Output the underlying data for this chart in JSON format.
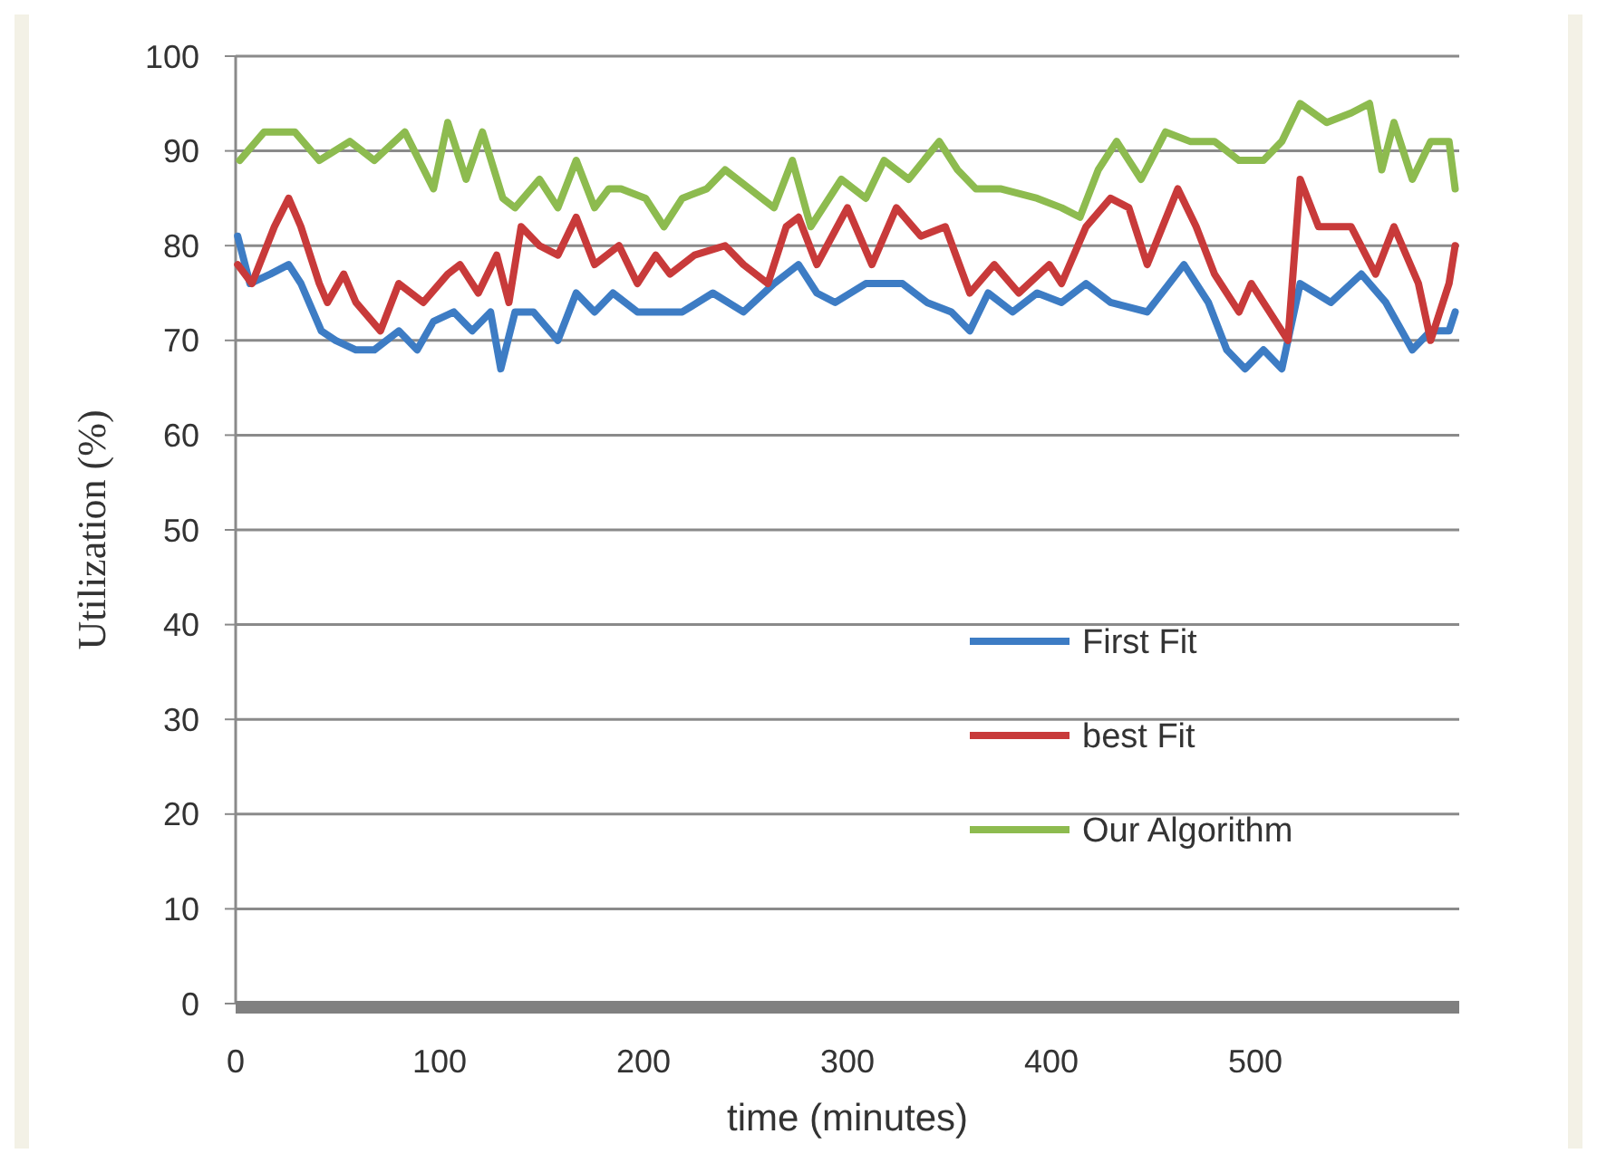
{
  "chart_data": {
    "type": "line",
    "xlabel": "time (minutes)",
    "ylabel": "Utilization (%)",
    "xlim": [
      0,
      600
    ],
    "xticks": [
      0,
      100,
      200,
      300,
      400,
      500
    ],
    "ylim": [
      0,
      100
    ],
    "yticks": [
      0,
      10,
      20,
      30,
      40,
      50,
      60,
      70,
      80,
      90,
      100
    ],
    "grid": "y",
    "legend": "bottom right",
    "marker": "none",
    "line_style": "solid",
    "series": [
      {
        "name": "First Fit",
        "color": "#3d7cc4",
        "x": [
          1,
          7,
          17,
          26,
          32,
          42,
          49,
          59,
          68,
          80,
          89,
          97,
          107,
          116,
          125,
          130,
          137,
          146,
          158,
          167,
          176,
          185,
          197,
          206,
          219,
          234,
          249,
          264,
          276,
          285,
          294,
          309,
          327,
          339,
          351,
          360,
          369,
          381,
          393,
          405,
          417,
          429,
          447,
          465,
          477,
          486,
          495,
          504,
          513,
          522,
          537,
          552,
          564,
          577,
          586,
          595,
          598
        ],
        "values": [
          81,
          76,
          77,
          78,
          76,
          71,
          70,
          69,
          69,
          71,
          69,
          72,
          73,
          71,
          73,
          67,
          73,
          73,
          70,
          75,
          73,
          75,
          73,
          73,
          73,
          75,
          73,
          76,
          78,
          75,
          74,
          76,
          76,
          74,
          73,
          71,
          75,
          73,
          75,
          74,
          76,
          74,
          73,
          78,
          74,
          69,
          67,
          69,
          67,
          76,
          74,
          77,
          74,
          69,
          71,
          71,
          73
        ]
      },
      {
        "name": "best Fit",
        "color": "#c83a3a",
        "x": [
          1,
          8,
          19,
          26,
          32,
          41,
          45,
          53,
          59,
          71,
          80,
          92,
          104,
          110,
          119,
          128,
          134,
          140,
          149,
          158,
          167,
          176,
          188,
          197,
          206,
          213,
          225,
          240,
          249,
          261,
          270,
          276,
          285,
          300,
          312,
          324,
          336,
          348,
          360,
          372,
          384,
          399,
          405,
          417,
          429,
          438,
          447,
          462,
          471,
          480,
          492,
          498,
          507,
          516,
          522,
          531,
          547,
          559,
          568,
          580,
          586,
          595,
          598
        ],
        "values": [
          78,
          76,
          82,
          85,
          82,
          76,
          74,
          77,
          74,
          71,
          76,
          74,
          77,
          78,
          75,
          79,
          74,
          82,
          80,
          79,
          83,
          78,
          80,
          76,
          79,
          77,
          79,
          80,
          78,
          76,
          82,
          83,
          78,
          84,
          78,
          84,
          81,
          82,
          75,
          78,
          75,
          78,
          76,
          82,
          85,
          84,
          78,
          86,
          82,
          77,
          73,
          76,
          73,
          70,
          87,
          82,
          82,
          77,
          82,
          76,
          70,
          76,
          80
        ]
      },
      {
        "name": "Our Algorithm",
        "color": "#8dbb4f",
        "x": [
          2,
          14,
          29,
          41,
          56,
          68,
          83,
          97,
          104,
          113,
          121,
          131,
          137,
          149,
          158,
          167,
          176,
          183,
          189,
          201,
          210,
          219,
          231,
          240,
          252,
          264,
          273,
          282,
          297,
          309,
          318,
          330,
          345,
          354,
          363,
          375,
          393,
          405,
          414,
          423,
          432,
          444,
          456,
          468,
          480,
          492,
          504,
          513,
          522,
          535,
          547,
          556,
          562,
          568,
          577,
          586,
          595,
          598
        ],
        "values": [
          89,
          92,
          92,
          89,
          91,
          89,
          92,
          86,
          93,
          87,
          92,
          85,
          84,
          87,
          84,
          89,
          84,
          86,
          86,
          85,
          82,
          85,
          86,
          88,
          86,
          84,
          89,
          82,
          87,
          85,
          89,
          87,
          91,
          88,
          86,
          86,
          85,
          84,
          83,
          88,
          91,
          87,
          92,
          91,
          91,
          89,
          89,
          91,
          95,
          93,
          94,
          95,
          88,
          93,
          87,
          91,
          91,
          86
        ]
      }
    ]
  }
}
